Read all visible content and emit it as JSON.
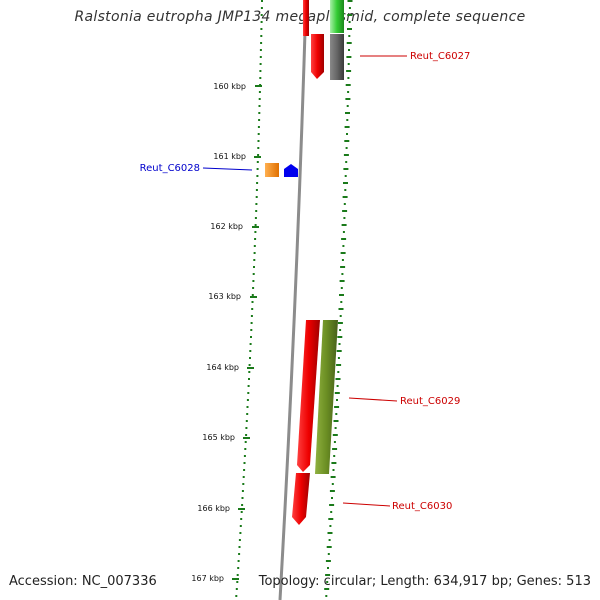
{
  "title": "Ralstonia eutropha JMP134 megaplasmid, complete sequence",
  "accession": "Accession: NC_007336",
  "info": "Topology: circular; Length: 634,917 bp; Genes: 513",
  "ticks": [
    "160 kbp",
    "161 kbp",
    "162 kbp",
    "163 kbp",
    "164 kbp",
    "165 kbp",
    "166 kbp",
    "167 kbp"
  ],
  "gene_labels": [
    {
      "text": "Reut_C6027",
      "color": "#cc0000"
    },
    {
      "text": "Reut_C6028",
      "color": "#0000cc"
    },
    {
      "text": "Reut_C6029",
      "color": "#cc0000"
    },
    {
      "text": "Reut_C6030",
      "color": "#cc0000"
    }
  ],
  "colors": {
    "backbone": "#8c8c8c",
    "tick": "#1a7a1a",
    "gene_red": "#ee0000",
    "gene_green": "#33cc33",
    "gene_gray": "#666666",
    "gene_orange": "#ff8800",
    "gene_blue": "#0000ee",
    "gene_olive": "#6b8e23"
  }
}
